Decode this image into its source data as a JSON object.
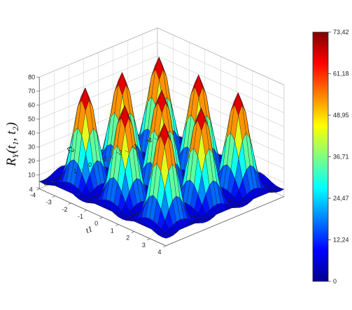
{
  "chart_data": {
    "type": "surface3d",
    "title": "",
    "zlabel": "R_Y(t_1,t_2)",
    "xlabel": "t1",
    "ylabel": "t2",
    "x_ticks": [
      "-4",
      "-3",
      "-2",
      "-1",
      "0",
      "1",
      "2",
      "3",
      "4"
    ],
    "y_ticks": [
      "-4",
      "-3",
      "-2",
      "-1",
      "0",
      "1",
      "2",
      "3",
      "4"
    ],
    "z_ticks": [
      "10",
      "20",
      "30",
      "40",
      "50",
      "60",
      "70",
      "80"
    ],
    "xlim": [
      -4,
      4
    ],
    "ylim": [
      -4,
      4
    ],
    "zlim": [
      0,
      80
    ],
    "colorbar": {
      "min": 0,
      "max": 73.42,
      "ticks": [
        "73,42",
        "61,18",
        "48,95",
        "36,71",
        "24,47",
        "12,24",
        "0"
      ],
      "colormap": "jet"
    },
    "surface": {
      "peaks_t1": [
        -2.5,
        0,
        2.5
      ],
      "peaks_t2": [
        -2.5,
        0,
        2.5
      ],
      "peak_value": 73.42,
      "valley_value": 5,
      "grid_step": 0.25
    },
    "grid": true
  }
}
